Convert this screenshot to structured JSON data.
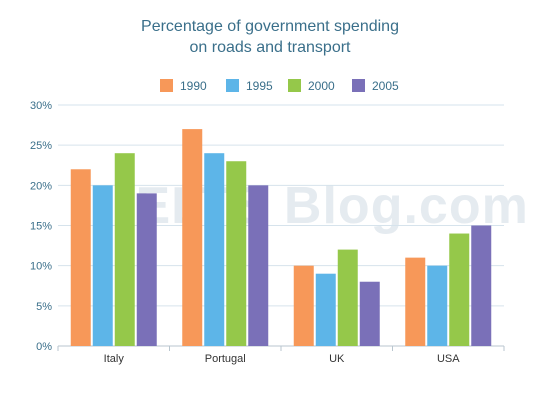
{
  "colors": {
    "1990": "#f79859",
    "1995": "#5db5e8",
    "2000": "#95c84a",
    "2005": "#7a70b8",
    "grid": "#d6e3ec",
    "axis": "#b9c6cf"
  },
  "watermark": "IELTS Blog.com",
  "chart_data": {
    "type": "bar",
    "title": "Percentage of government spending on roads and transport",
    "title_lines": [
      "Percentage of government spending",
      "on roads and transport"
    ],
    "categories": [
      "Italy",
      "Portugal",
      "UK",
      "USA"
    ],
    "series": [
      {
        "name": "1990",
        "values": [
          22,
          27,
          10,
          11
        ]
      },
      {
        "name": "1995",
        "values": [
          20,
          24,
          9,
          10
        ]
      },
      {
        "name": "2000",
        "values": [
          24,
          23,
          12,
          14
        ]
      },
      {
        "name": "2005",
        "values": [
          19,
          20,
          8,
          15
        ]
      }
    ],
    "y_ticks": [
      "0%",
      "5%",
      "10%",
      "15%",
      "20%",
      "25%",
      "30%"
    ],
    "ylim": [
      0,
      30
    ],
    "grid": true,
    "legend_position": "top"
  }
}
